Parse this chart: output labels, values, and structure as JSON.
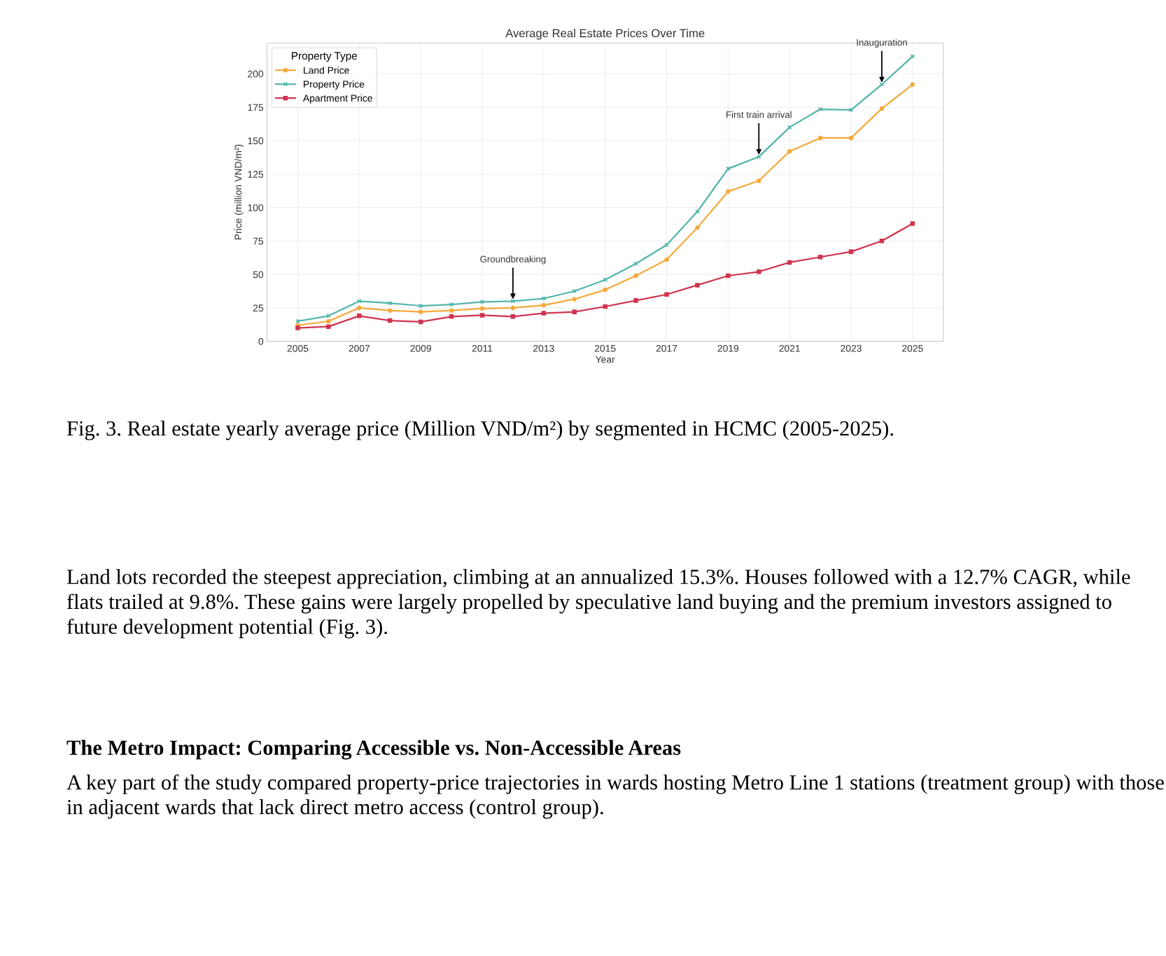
{
  "chart_data": {
    "type": "line",
    "title": "Average Real Estate Prices Over Time",
    "xlabel": "Year",
    "ylabel": "Price (million VND/m²)",
    "legend_title": "Property Type",
    "x": [
      2005,
      2006,
      2007,
      2008,
      2009,
      2010,
      2011,
      2012,
      2013,
      2014,
      2015,
      2016,
      2017,
      2018,
      2019,
      2020,
      2021,
      2022,
      2023,
      2024,
      2025
    ],
    "series": [
      {
        "name": "Land Price",
        "color": "#f5a93a",
        "marker": "circle",
        "values": [
          12,
          15,
          25,
          23,
          22,
          23,
          24.5,
          25,
          27,
          31.5,
          38.5,
          49,
          61,
          85,
          112,
          120,
          142,
          152,
          152,
          174,
          192
        ]
      },
      {
        "name": "Property Price",
        "color": "#52b5ab",
        "marker": "cross",
        "values": [
          15,
          19,
          30,
          28.5,
          26.5,
          27.5,
          29.5,
          30,
          32,
          37.5,
          46,
          58,
          72,
          97,
          129,
          138,
          160,
          173.5,
          173,
          192,
          213
        ]
      },
      {
        "name": "Apartment Price",
        "color": "#d0344f",
        "marker": "square",
        "values": [
          10,
          11,
          19,
          15.5,
          14.5,
          18.5,
          19.5,
          18.5,
          21,
          22,
          26,
          30.5,
          35,
          42,
          49,
          52,
          59,
          63,
          67,
          75,
          88
        ]
      }
    ],
    "xlim": [
      2004,
      2026
    ],
    "xticks": [
      2005,
      2007,
      2009,
      2011,
      2013,
      2015,
      2017,
      2019,
      2021,
      2023,
      2025
    ],
    "ylim": [
      0,
      223
    ],
    "yticks": [
      0,
      25,
      50,
      75,
      100,
      125,
      150,
      175,
      200
    ],
    "grid": true,
    "legend": "top left",
    "line_style": "solid",
    "annotations": [
      {
        "text": "Groundbreaking",
        "x": 2012,
        "y": 30
      },
      {
        "text": "First train arrival",
        "x": 2020,
        "y": 138
      },
      {
        "text": "Inauguration",
        "x": 2024,
        "y": 192
      },
      "Fig. 3. Real estate yearly average price (Million VND/m²) by segmented in HCMC (2005-2025).",
      "Land lots recorded the steepest appreciation, climbing at an annualized 15.3%. Houses followed with a 12.7% CAGR, while flats trailed at 9.8%. These gains were largely propelled by speculative land buying and the premium investors assigned to future development potential (Fig. 3).",
      "The Metro Impact: Comparing Accessible vs. Non-Accessible Areas",
      "A key part of the study compared property-price trajectories in wards hosting Metro Line 1 stations (treatment group) with those in adjacent wards that lack direct metro access (control group)."
    ]
  }
}
